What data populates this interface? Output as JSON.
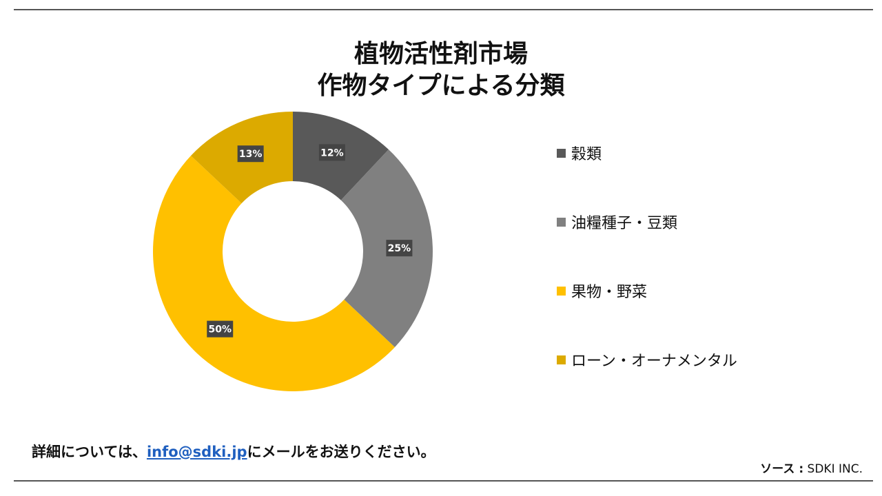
{
  "chart_data": {
    "type": "pie",
    "title_line1": "植物活性剤市場",
    "title_line2": "作物タイプによる分類",
    "categories": [
      "穀類",
      "油糧種子・豆類",
      "果物・野菜",
      "ローン・オーナメンタル"
    ],
    "values": [
      12,
      25,
      50,
      13
    ],
    "value_labels": [
      "12%",
      "25%",
      "50%",
      "13%"
    ],
    "colors": [
      "#595959",
      "#808080",
      "#ffc000",
      "#dcaa00"
    ],
    "legend_position": "right",
    "donut": true
  },
  "footer": {
    "prefix": "詳細については、",
    "email": "info@sdki.jp",
    "suffix": "にメールをお送りください。"
  },
  "source": {
    "label": "ソース :",
    "value": "SDKI INC."
  }
}
